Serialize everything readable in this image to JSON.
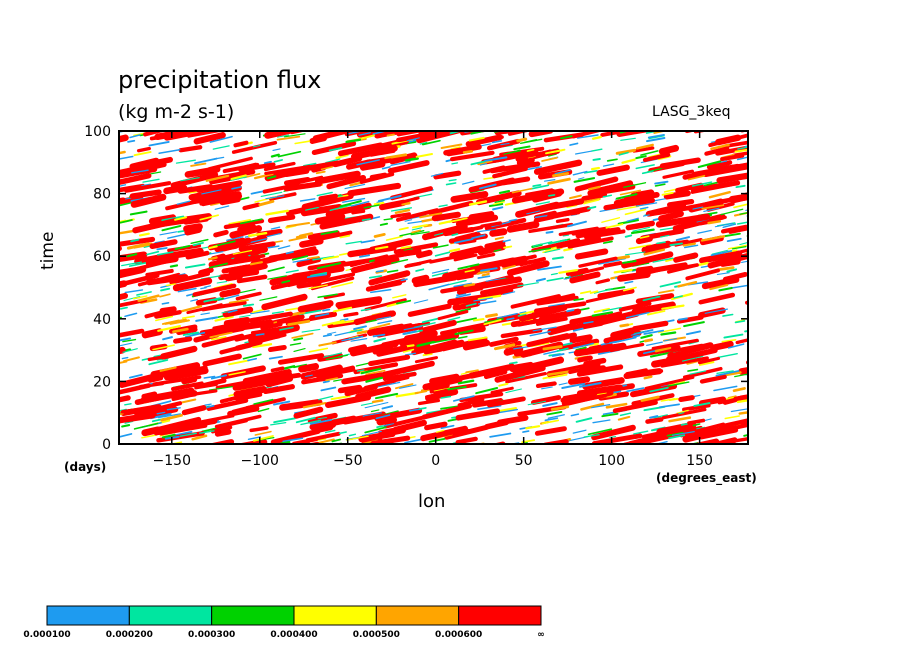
{
  "chart_data": {
    "type": "heatmap",
    "title": "precipitation flux",
    "units": "(kg m-2 s-1)",
    "model_label": "LASG_3keq",
    "xlabel": "lon",
    "ylabel": "time",
    "xunit": "(degrees_east)",
    "yunit": "(days)",
    "xlim": [
      -180,
      177.5
    ],
    "ylim": [
      0,
      100
    ],
    "xticks": [
      -150,
      -100,
      -50,
      0,
      50,
      100,
      150
    ],
    "yticks": [
      0,
      20,
      40,
      60,
      80,
      100
    ],
    "colorbar": {
      "levels": [
        "0.000100",
        "0.000200",
        "0.000300",
        "0.000400",
        "0.000500",
        "0.000600",
        "∞"
      ],
      "colors": [
        "#1e9bf0",
        "#00e6a0",
        "#00d200",
        "#ffff00",
        "#ffa500",
        "#ff0000"
      ]
    }
  }
}
